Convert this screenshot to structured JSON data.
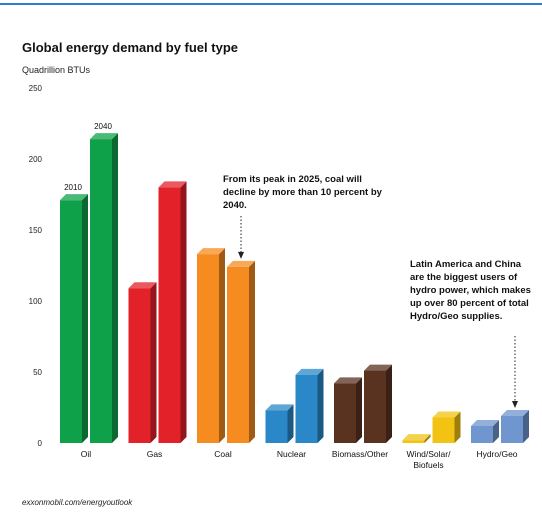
{
  "chart_data": {
    "type": "bar",
    "title": "Global energy demand by fuel type",
    "ylabel": "Quadrillion BTUs",
    "ylim": [
      0,
      250
    ],
    "yticks": [
      0,
      50,
      100,
      150,
      200,
      250
    ],
    "grid": false,
    "categories": [
      "Oil",
      "Gas",
      "Coal",
      "Nuclear",
      "Biomass/Other",
      "Wind/Solar/\nBiofuels",
      "Hydro/Geo"
    ],
    "category_lines": [
      [
        "Oil"
      ],
      [
        "Gas"
      ],
      [
        "Coal"
      ],
      [
        "Nuclear"
      ],
      [
        "Biomass/Other"
      ],
      [
        "Wind/Solar/",
        "Biofuels"
      ],
      [
        "Hydro/Geo"
      ]
    ],
    "series": [
      {
        "name": "2010",
        "values": [
          171,
          109,
          133,
          23,
          42,
          2,
          12
        ]
      },
      {
        "name": "2040",
        "values": [
          214,
          180,
          124,
          48,
          51,
          18,
          19
        ]
      }
    ],
    "colors": [
      "#0fa14a",
      "#e32129",
      "#f68b1f",
      "#2a87c8",
      "#5a3220",
      "#f2c313",
      "#6f96cf"
    ],
    "annotations": [
      "From its peak in 2025, coal will decline by more than 10 percent by 2040.",
      "Latin America and China are the biggest users of hydro power, which makes up over 80 percent of total Hydro/Geo supplies."
    ],
    "source": "exxonmobil.com/energyoutlook"
  }
}
